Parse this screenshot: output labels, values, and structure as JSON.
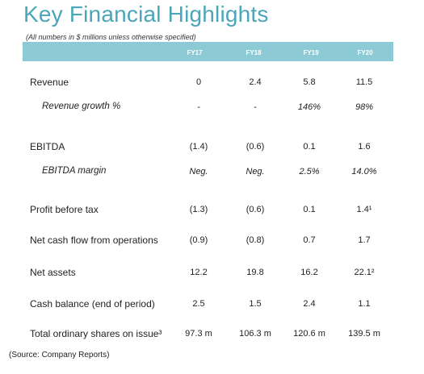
{
  "title": "Key Financial Highlights",
  "subtitle": "(All numbers in $ millions unless otherwise specified)",
  "columns": [
    "FY17",
    "FY18",
    "FY19",
    "FY20"
  ],
  "rows": [
    {
      "label": "Revenue",
      "values": [
        "0",
        "2.4",
        "5.8",
        "11.5"
      ]
    },
    {
      "label": "Revenue growth %",
      "values": [
        "-",
        "-",
        "146%",
        "98%"
      ]
    },
    {
      "label": "EBITDA",
      "values": [
        "(1.4)",
        "(0.6)",
        "0.1",
        "1.6"
      ]
    },
    {
      "label": "EBITDA margin",
      "values": [
        "Neg.",
        "Neg.",
        "2.5%",
        "14.0%"
      ]
    },
    {
      "label": "Profit before tax",
      "values": [
        "(1.3)",
        "(0.6)",
        "0.1",
        "1.4¹"
      ]
    },
    {
      "label": "Net cash flow from operations",
      "values": [
        "(0.9)",
        "(0.8)",
        "0.7",
        "1.7"
      ]
    },
    {
      "label": "Net assets",
      "values": [
        "12.2",
        "19.8",
        "16.2",
        "22.1²"
      ]
    },
    {
      "label": "Cash balance (end of period)",
      "values": [
        "2.5",
        "1.5",
        "2.4",
        "1.1"
      ]
    },
    {
      "label": "Total ordinary shares on issue³",
      "values": [
        "97.3 m",
        "106.3 m",
        "120.6 m",
        "139.5 m"
      ]
    }
  ],
  "source": "(Source: Company Reports)",
  "colors": {
    "accent": "#4aa6b8",
    "header_band": "#8ccbd6"
  }
}
